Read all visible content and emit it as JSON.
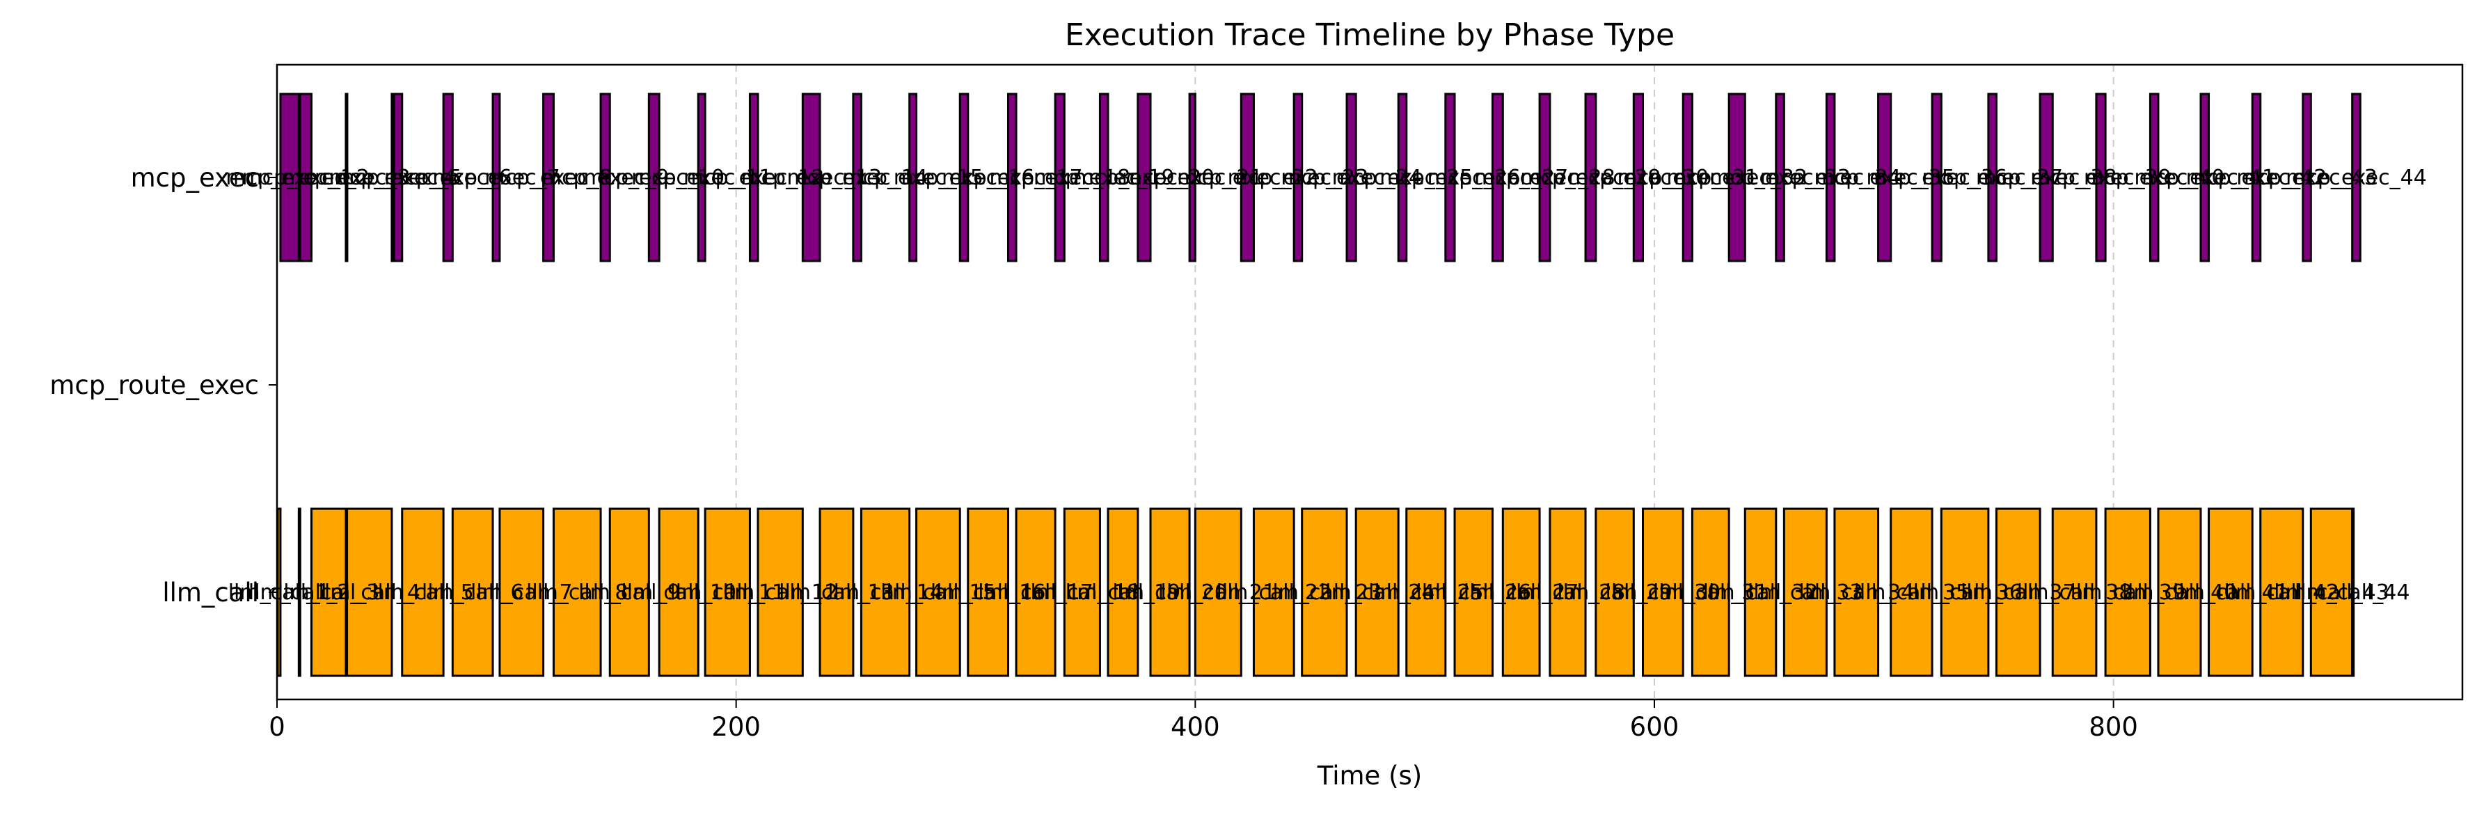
{
  "chart_data": {
    "type": "timeline",
    "title": "Execution Trace Timeline by Phase Type",
    "xlabel": "Time (s)",
    "ylabel": "",
    "xlim": [
      0,
      952
    ],
    "xticks": [
      0,
      200,
      400,
      600,
      800
    ],
    "grid": "x-axis dashed",
    "categories": [
      "mcp_exec",
      "mcp_route_exec",
      "llm_call"
    ],
    "colors": {
      "mcp_exec": "#800080",
      "llm_call": "#FFA500",
      "edge": "#000000"
    },
    "series": [
      {
        "name": "mcp_exec",
        "bars": [
          {
            "label": "mcp_exec_1",
            "start": 1.5,
            "end": 9.5
          },
          {
            "label": "mcp_exec_2",
            "start": 10.0,
            "end": 15.0
          },
          {
            "label": "mcp_exec_3",
            "start": 30.0,
            "end": 30.5
          },
          {
            "label": "mcp_exec_4",
            "start": 50.0,
            "end": 50.8
          },
          {
            "label": "mcp_exec_5",
            "start": 51.0,
            "end": 54.5
          },
          {
            "label": "mcp_exec_6",
            "start": 72.5,
            "end": 76.5
          },
          {
            "label": "mcp_exec_7",
            "start": 94.0,
            "end": 97.0
          },
          {
            "label": "mcp_exec_8",
            "start": 116.0,
            "end": 120.5
          },
          {
            "label": "mcp_exec_9",
            "start": 141.0,
            "end": 145.0
          },
          {
            "label": "mcp_exec_10",
            "start": 162.0,
            "end": 166.5
          },
          {
            "label": "mcp_exec_11",
            "start": 183.5,
            "end": 186.5
          },
          {
            "label": "mcp_exec_12",
            "start": 206.0,
            "end": 209.5
          },
          {
            "label": "mcp_exec_13",
            "start": 229.0,
            "end": 236.5
          },
          {
            "label": "mcp_exec_14",
            "start": 251.0,
            "end": 254.5
          },
          {
            "label": "mcp_exec_15",
            "start": 275.5,
            "end": 278.5
          },
          {
            "label": "mcp_exec_16",
            "start": 297.5,
            "end": 301.0
          },
          {
            "label": "mcp_exec_17",
            "start": 318.5,
            "end": 322.0
          },
          {
            "label": "mcp_exec_18",
            "start": 339.0,
            "end": 343.0
          },
          {
            "label": "mcp_exec_19",
            "start": 358.5,
            "end": 362.0
          },
          {
            "label": "mcp_exec_20",
            "start": 375.0,
            "end": 380.5
          },
          {
            "label": "mcp_exec_21",
            "start": 397.5,
            "end": 400.0
          },
          {
            "label": "mcp_exec_22",
            "start": 420.0,
            "end": 425.5
          },
          {
            "label": "mcp_exec_23",
            "start": 443.0,
            "end": 446.5
          },
          {
            "label": "mcp_exec_24",
            "start": 466.0,
            "end": 470.0
          },
          {
            "label": "mcp_exec_25",
            "start": 488.5,
            "end": 492.0
          },
          {
            "label": "mcp_exec_26",
            "start": 509.0,
            "end": 513.0
          },
          {
            "label": "mcp_exec_27",
            "start": 529.5,
            "end": 534.0
          },
          {
            "label": "mcp_exec_28",
            "start": 550.0,
            "end": 554.5
          },
          {
            "label": "mcp_exec_29",
            "start": 570.0,
            "end": 574.5
          },
          {
            "label": "mcp_exec_30",
            "start": 591.0,
            "end": 595.0
          },
          {
            "label": "mcp_exec_31",
            "start": 612.5,
            "end": 616.5
          },
          {
            "label": "mcp_exec_32",
            "start": 632.5,
            "end": 639.5
          },
          {
            "label": "mcp_exec_33",
            "start": 653.0,
            "end": 656.5
          },
          {
            "label": "mcp_exec_34",
            "start": 675.0,
            "end": 678.5
          },
          {
            "label": "mcp_exec_35",
            "start": 697.5,
            "end": 703.0
          },
          {
            "label": "mcp_exec_36",
            "start": 721.0,
            "end": 725.0
          },
          {
            "label": "mcp_exec_37",
            "start": 745.5,
            "end": 749.0
          },
          {
            "label": "mcp_exec_38",
            "start": 768.0,
            "end": 773.5
          },
          {
            "label": "mcp_exec_39",
            "start": 792.5,
            "end": 796.5
          },
          {
            "label": "mcp_exec_40",
            "start": 816.0,
            "end": 819.5
          },
          {
            "label": "mcp_exec_41",
            "start": 838.0,
            "end": 841.5
          },
          {
            "label": "mcp_exec_42",
            "start": 860.5,
            "end": 864.0
          },
          {
            "label": "mcp_exec_43",
            "start": 882.5,
            "end": 886.0
          },
          {
            "label": "mcp_exec_44",
            "start": 904.0,
            "end": 907.5
          }
        ]
      },
      {
        "name": "mcp_route_exec",
        "bars": []
      },
      {
        "name": "llm_call",
        "bars": [
          {
            "label": "llm_call_1",
            "start": 0.3,
            "end": 1.5
          },
          {
            "label": "llm_call_2",
            "start": 9.5,
            "end": 10.0
          },
          {
            "label": "llm_call_3",
            "start": 15.0,
            "end": 30.0
          },
          {
            "label": "llm_call_4",
            "start": 30.5,
            "end": 50.0
          },
          {
            "label": "llm_call_5",
            "start": 54.5,
            "end": 72.5
          },
          {
            "label": "llm_call_6",
            "start": 76.5,
            "end": 94.0
          },
          {
            "label": "llm_call_7",
            "start": 97.0,
            "end": 116.0
          },
          {
            "label": "llm_call_8",
            "start": 120.5,
            "end": 141.0
          },
          {
            "label": "llm_call_9",
            "start": 145.0,
            "end": 162.0
          },
          {
            "label": "llm_call_10",
            "start": 166.5,
            "end": 183.5
          },
          {
            "label": "llm_call_11",
            "start": 186.5,
            "end": 206.0
          },
          {
            "label": "llm_call_12",
            "start": 209.5,
            "end": 229.0
          },
          {
            "label": "llm_call_13",
            "start": 236.5,
            "end": 251.0
          },
          {
            "label": "llm_call_14",
            "start": 254.5,
            "end": 275.5
          },
          {
            "label": "llm_call_15",
            "start": 278.5,
            "end": 297.5
          },
          {
            "label": "llm_call_16",
            "start": 301.0,
            "end": 318.5
          },
          {
            "label": "llm_call_17",
            "start": 322.0,
            "end": 339.0
          },
          {
            "label": "llm_call_18",
            "start": 343.0,
            "end": 358.5
          },
          {
            "label": "llm_call_19",
            "start": 362.0,
            "end": 375.0
          },
          {
            "label": "llm_call_20",
            "start": 380.5,
            "end": 397.5
          },
          {
            "label": "llm_call_21",
            "start": 400.0,
            "end": 420.0
          },
          {
            "label": "llm_call_22",
            "start": 425.5,
            "end": 443.0
          },
          {
            "label": "llm_call_23",
            "start": 446.5,
            "end": 466.0
          },
          {
            "label": "llm_call_24",
            "start": 470.0,
            "end": 488.5
          },
          {
            "label": "llm_call_25",
            "start": 492.0,
            "end": 509.0
          },
          {
            "label": "llm_call_26",
            "start": 513.0,
            "end": 529.5
          },
          {
            "label": "llm_call_27",
            "start": 534.0,
            "end": 550.0
          },
          {
            "label": "llm_call_28",
            "start": 554.5,
            "end": 570.0
          },
          {
            "label": "llm_call_29",
            "start": 574.5,
            "end": 591.0
          },
          {
            "label": "llm_call_30",
            "start": 595.0,
            "end": 612.5
          },
          {
            "label": "llm_call_31",
            "start": 616.5,
            "end": 632.5
          },
          {
            "label": "llm_call_32",
            "start": 639.5,
            "end": 653.0
          },
          {
            "label": "llm_call_33",
            "start": 656.5,
            "end": 675.0
          },
          {
            "label": "llm_call_34",
            "start": 678.5,
            "end": 697.5
          },
          {
            "label": "llm_call_35",
            "start": 703.0,
            "end": 721.0
          },
          {
            "label": "llm_call_36",
            "start": 725.0,
            "end": 745.5
          },
          {
            "label": "llm_call_37",
            "start": 749.0,
            "end": 768.0
          },
          {
            "label": "llm_call_38",
            "start": 773.5,
            "end": 792.5
          },
          {
            "label": "llm_call_39",
            "start": 796.5,
            "end": 816.0
          },
          {
            "label": "llm_call_40",
            "start": 819.5,
            "end": 838.0
          },
          {
            "label": "llm_call_41",
            "start": 841.5,
            "end": 860.5
          },
          {
            "label": "llm_call_42",
            "start": 864.0,
            "end": 882.5
          },
          {
            "label": "llm_call_43",
            "start": 886.0,
            "end": 904.0
          },
          {
            "label": "llm_call_44",
            "start": 904.0,
            "end": 904.0
          }
        ]
      }
    ]
  }
}
